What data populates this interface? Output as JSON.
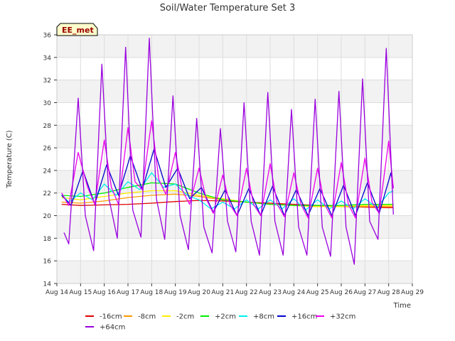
{
  "chart_data": {
    "type": "line",
    "title": "Soil/Water Temperature Set 3",
    "xlabel": "Time",
    "ylabel": "Temperature (C)",
    "station_label": "EE_met",
    "ylim": [
      14,
      36
    ],
    "yticks": [
      14,
      16,
      18,
      20,
      22,
      24,
      26,
      28,
      30,
      32,
      34,
      36
    ],
    "xlim": [
      14,
      29
    ],
    "xticks": [
      {
        "v": 14,
        "label": "Aug 14"
      },
      {
        "v": 15,
        "label": "Aug 15"
      },
      {
        "v": 16,
        "label": "Aug 16"
      },
      {
        "v": 17,
        "label": "Aug 17"
      },
      {
        "v": 18,
        "label": "Aug 18"
      },
      {
        "v": 19,
        "label": "Aug 19"
      },
      {
        "v": 20,
        "label": "Aug 20"
      },
      {
        "v": 21,
        "label": "Aug 21"
      },
      {
        "v": 22,
        "label": "Aug 22"
      },
      {
        "v": 23,
        "label": "Aug 23"
      },
      {
        "v": 24,
        "label": "Aug 24"
      },
      {
        "v": 25,
        "label": "Aug 25"
      },
      {
        "v": 26,
        "label": "Aug 26"
      },
      {
        "v": 27,
        "label": "Aug 27"
      },
      {
        "v": 28,
        "label": "Aug 28"
      },
      {
        "v": 29,
        "label": "Aug 29"
      }
    ],
    "grid": true,
    "banded_background": true,
    "legend_position": "bottom",
    "series": [
      {
        "name": "-16cm",
        "color": "#dd0000",
        "x": [
          14.2,
          15,
          16,
          17,
          18,
          19,
          20,
          21,
          22,
          23,
          24,
          25,
          26,
          27,
          28,
          28.2
        ],
        "y": [
          21.0,
          20.9,
          20.95,
          21.0,
          21.1,
          21.25,
          21.35,
          21.3,
          21.2,
          21.1,
          21.0,
          20.9,
          20.8,
          20.75,
          20.7,
          20.7
        ]
      },
      {
        "name": "-8cm",
        "color": "#ff9900",
        "x": [
          14.2,
          15,
          16,
          17,
          18,
          19,
          20,
          21,
          22,
          23,
          24,
          25,
          26,
          27,
          28,
          28.2
        ],
        "y": [
          21.2,
          21.1,
          21.3,
          21.6,
          21.8,
          21.9,
          21.7,
          21.4,
          21.2,
          21.0,
          20.9,
          20.8,
          20.8,
          20.8,
          20.8,
          20.8
        ]
      },
      {
        "name": "-2cm",
        "color": "#ffee00",
        "x": [
          14.2,
          15,
          16,
          17,
          18,
          19,
          20,
          21,
          22,
          23,
          24,
          25,
          26,
          27,
          28,
          28.2
        ],
        "y": [
          21.6,
          21.4,
          21.7,
          22.0,
          22.2,
          22.2,
          21.8,
          21.5,
          21.2,
          21.0,
          20.9,
          20.8,
          20.8,
          20.9,
          20.9,
          20.9
        ]
      },
      {
        "name": "+2cm",
        "color": "#00ee00",
        "x": [
          14.2,
          15,
          16,
          17,
          18,
          19,
          20,
          21,
          22,
          23,
          24,
          25,
          26,
          27,
          28,
          28.2
        ],
        "y": [
          21.8,
          21.7,
          22.0,
          22.5,
          22.9,
          22.8,
          22.0,
          21.4,
          21.2,
          21.0,
          20.9,
          20.9,
          20.9,
          21.0,
          21.0,
          21.0
        ]
      },
      {
        "name": "+8cm",
        "color": "#00eeee",
        "x": [
          14.2,
          14.5,
          15,
          15.5,
          16,
          16.5,
          17,
          17.5,
          18,
          18.5,
          19,
          19.5,
          20,
          20.5,
          21,
          21.5,
          22,
          22.5,
          23,
          23.5,
          24,
          24.5,
          25,
          25.5,
          26,
          26.5,
          27,
          27.5,
          28,
          28.2
        ],
        "y": [
          21.9,
          21.2,
          22.0,
          21.4,
          22.8,
          21.8,
          23.0,
          22.3,
          23.8,
          22.5,
          22.8,
          21.8,
          21.4,
          20.6,
          21.2,
          20.6,
          21.4,
          20.6,
          21.4,
          20.6,
          21.5,
          20.5,
          21.4,
          20.6,
          21.3,
          20.6,
          21.5,
          20.7,
          22.0,
          22.2
        ]
      },
      {
        "name": "+16cm",
        "color": "#0000cc",
        "x": [
          14.2,
          14.6,
          15.1,
          15.6,
          16.1,
          16.6,
          17.1,
          17.6,
          18.1,
          18.6,
          19.1,
          19.6,
          20.1,
          20.6,
          21.1,
          21.6,
          22.1,
          22.6,
          23.1,
          23.6,
          24.1,
          24.6,
          25.1,
          25.6,
          26.1,
          26.6,
          27.1,
          27.6,
          28.1,
          28.2
        ],
        "y": [
          21.8,
          20.9,
          24.0,
          21.0,
          24.5,
          21.8,
          25.3,
          22.3,
          25.9,
          22.5,
          24.2,
          21.5,
          22.5,
          20.3,
          22.3,
          20.0,
          22.4,
          20.0,
          22.6,
          20.0,
          22.3,
          20.0,
          22.4,
          20.0,
          22.7,
          20.0,
          22.9,
          20.2,
          23.8,
          22.5
        ]
      },
      {
        "name": "+32cm",
        "color": "#ee00ee",
        "x": [
          14.2,
          14.5,
          14.9,
          15.3,
          15.6,
          16.0,
          16.3,
          16.6,
          17.0,
          17.3,
          17.6,
          18.0,
          18.3,
          18.6,
          19.0,
          19.3,
          19.6,
          20.0,
          20.3,
          20.6,
          21.0,
          21.3,
          21.6,
          22.0,
          22.3,
          22.6,
          23.0,
          23.3,
          23.6,
          24.0,
          24.3,
          24.6,
          25.0,
          25.3,
          25.6,
          26.0,
          26.3,
          26.6,
          27.0,
          27.3,
          27.6,
          28.0,
          28.2
        ],
        "y": [
          22.0,
          20.9,
          25.6,
          22.5,
          21.0,
          26.7,
          22.5,
          21.0,
          27.8,
          23.0,
          22.3,
          28.4,
          23.2,
          21.9,
          25.6,
          22.2,
          21.0,
          24.2,
          21.5,
          20.2,
          23.6,
          21.0,
          20.0,
          24.2,
          21.0,
          20.0,
          24.6,
          21.0,
          19.9,
          23.8,
          21.0,
          19.8,
          24.2,
          21.0,
          19.8,
          24.7,
          21.0,
          19.8,
          25.1,
          21.2,
          20.2,
          26.6,
          22.4
        ]
      },
      {
        "name": "+64cm",
        "color": "#9900dd",
        "x": [
          14.3,
          14.5,
          14.9,
          15.2,
          15.55,
          15.9,
          16.2,
          16.55,
          16.9,
          17.2,
          17.55,
          17.9,
          18.2,
          18.55,
          18.9,
          19.2,
          19.55,
          19.9,
          20.2,
          20.55,
          20.9,
          21.2,
          21.55,
          21.9,
          22.2,
          22.55,
          22.9,
          23.2,
          23.55,
          23.9,
          24.2,
          24.55,
          24.9,
          25.2,
          25.55,
          25.9,
          26.2,
          26.55,
          26.9,
          27.2,
          27.55,
          27.9,
          28.2
        ],
        "y": [
          18.5,
          17.5,
          30.4,
          20.0,
          16.9,
          33.4,
          21.5,
          18.0,
          34.9,
          20.5,
          18.1,
          35.7,
          21.5,
          17.9,
          30.6,
          20.0,
          17.0,
          28.6,
          19.0,
          16.7,
          27.7,
          19.5,
          16.8,
          30.0,
          19.5,
          16.5,
          30.9,
          19.5,
          16.5,
          29.4,
          19.0,
          16.5,
          30.3,
          19.0,
          16.4,
          31.0,
          19.0,
          15.7,
          32.1,
          19.5,
          17.9,
          34.8,
          20.1
        ]
      }
    ]
  }
}
